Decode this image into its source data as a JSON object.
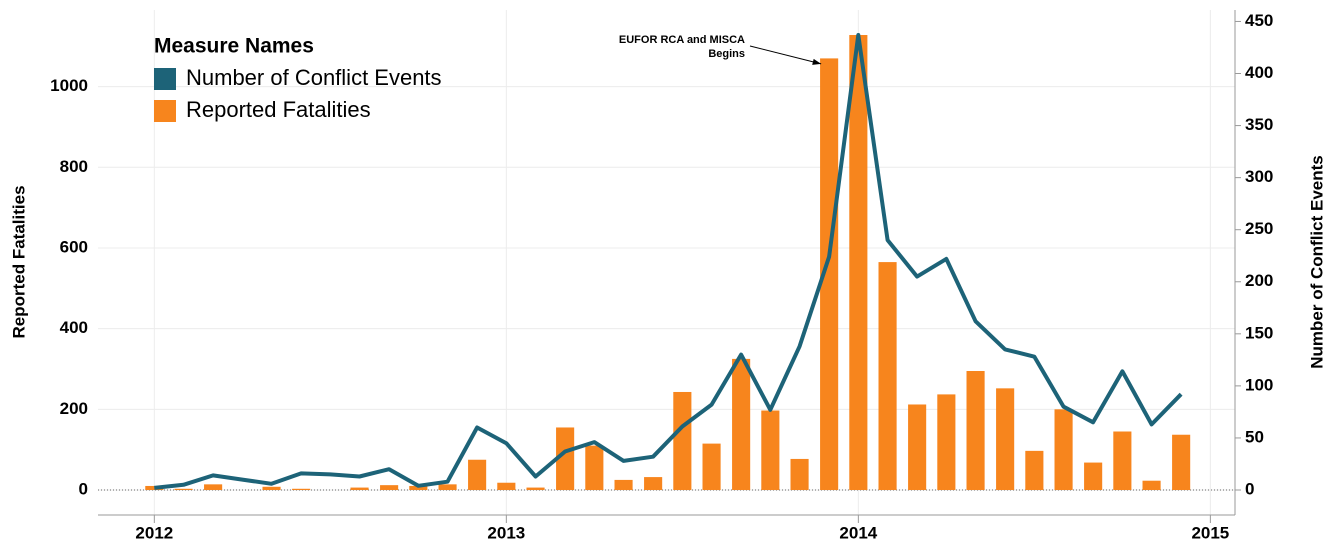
{
  "chart_data": {
    "type": "bar_line",
    "y_label": "Reported Fatalities",
    "y2_label": "Number of Conflict Events",
    "legend_title": "Measure Names",
    "legend": "upper left",
    "grid": true,
    "annotation": {
      "lines": [
        "EUFOR RCA and MISCA",
        "Begins"
      ],
      "x": 2013.917,
      "y": 415
    },
    "x": [
      2012,
      2012.083,
      2012.167,
      2012.25,
      2012.333,
      2012.417,
      2012.5,
      2012.583,
      2012.667,
      2012.75,
      2012.833,
      2012.917,
      2013,
      2013.083,
      2013.167,
      2013.25,
      2013.333,
      2013.417,
      2013.5,
      2013.583,
      2013.667,
      2013.75,
      2013.833,
      2013.917,
      2014,
      2014.083,
      2014.167,
      2014.25,
      2014.333,
      2014.417,
      2014.5,
      2014.583,
      2014.667,
      2014.75,
      2014.833,
      2014.917
    ],
    "xlim": [
      2011.84,
      2015.07
    ],
    "xticks": [
      2012,
      2013,
      2014,
      2015
    ],
    "ylim": [
      -62,
      1190
    ],
    "yticks": [
      0,
      200,
      400,
      600,
      800,
      1000
    ],
    "y2lim": [
      -24,
      461
    ],
    "y2ticks": [
      0,
      50,
      100,
      150,
      200,
      250,
      300,
      350,
      400,
      450
    ],
    "series": [
      {
        "name": "Number of Conflict Events",
        "color": "#1d6378",
        "axis": "y2",
        "kind": "line",
        "values": [
          2,
          5,
          14,
          10,
          6,
          16,
          15,
          13,
          20,
          4,
          8,
          60,
          45,
          13,
          37,
          46,
          28,
          32,
          61,
          82,
          130,
          77,
          138,
          224,
          437,
          240,
          205,
          222,
          162,
          135,
          128,
          80,
          65,
          114,
          63,
          92
        ]
      },
      {
        "name": "Reported Fatalities",
        "color": "#f7851d",
        "axis": "y",
        "kind": "bar",
        "values": [
          10,
          3,
          14,
          0,
          8,
          3,
          0,
          6,
          12,
          10,
          14,
          75,
          18,
          6,
          155,
          110,
          25,
          32,
          243,
          115,
          325,
          197,
          77,
          1070,
          1128,
          565,
          212,
          237,
          295,
          252,
          97,
          200,
          68,
          145,
          23,
          137
        ]
      }
    ]
  }
}
